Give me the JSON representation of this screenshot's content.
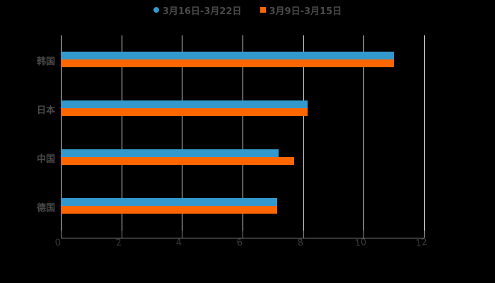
{
  "chart_data": {
    "type": "bar",
    "orientation": "horizontal",
    "title": "",
    "xlabel": "",
    "ylabel": "",
    "xlim": [
      0,
      12
    ],
    "x_ticks": [
      "0",
      "2",
      "4",
      "6",
      "8",
      "10",
      "12"
    ],
    "grid": true,
    "legend_position": "top",
    "categories": [
      "韩国",
      "日本",
      "中国",
      "德国"
    ],
    "series": [
      {
        "name": "3月16日-3月22日",
        "color": "#3399cc",
        "values": [
          11.0,
          8.15,
          7.2,
          7.15
        ]
      },
      {
        "name": "3月9日-3月15日",
        "color": "#ff6600",
        "values": [
          11.0,
          8.15,
          7.7,
          7.15
        ]
      }
    ]
  }
}
